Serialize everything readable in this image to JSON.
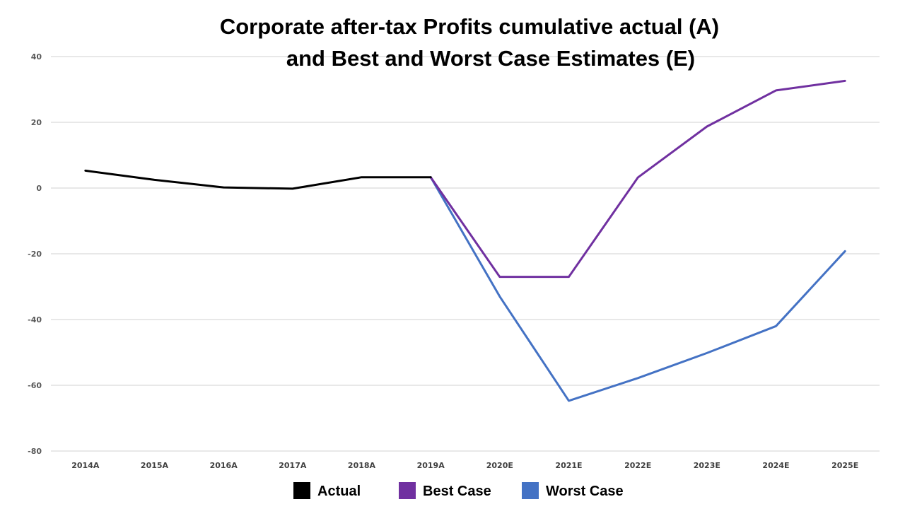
{
  "chart_data": {
    "type": "line",
    "title_lines": [
      "Corporate after-tax Profits cumulative actual (A)",
      "and Best and Worst Case Estimates (E)"
    ],
    "xlabel": "",
    "ylabel": "",
    "categories": [
      "2014A",
      "2015A",
      "2016A",
      "2017A",
      "2018A",
      "2019A",
      "2020E",
      "2021E",
      "2022E",
      "2023E",
      "2024E",
      "2025E"
    ],
    "ylim": [
      -80,
      40
    ],
    "yticks": [
      40,
      20,
      0,
      -20,
      -40,
      -60,
      -80
    ],
    "grid": true,
    "legend_position": "bottom",
    "series": [
      {
        "name": "Actual",
        "color": "#000000",
        "values": [
          5.3,
          2.5,
          0.2,
          -0.2,
          3.3,
          3.3,
          null,
          null,
          null,
          null,
          null,
          null
        ]
      },
      {
        "name": "Best Case",
        "color": "#7030A0",
        "values": [
          null,
          null,
          null,
          null,
          null,
          3.3,
          -27,
          -27,
          3.2,
          18.7,
          29.7,
          32.6
        ]
      },
      {
        "name": "Worst Case",
        "color": "#4472C4",
        "values": [
          null,
          null,
          null,
          null,
          null,
          3.3,
          -33,
          -64.7,
          -57.8,
          -50.2,
          -42,
          -19.2
        ]
      }
    ]
  }
}
